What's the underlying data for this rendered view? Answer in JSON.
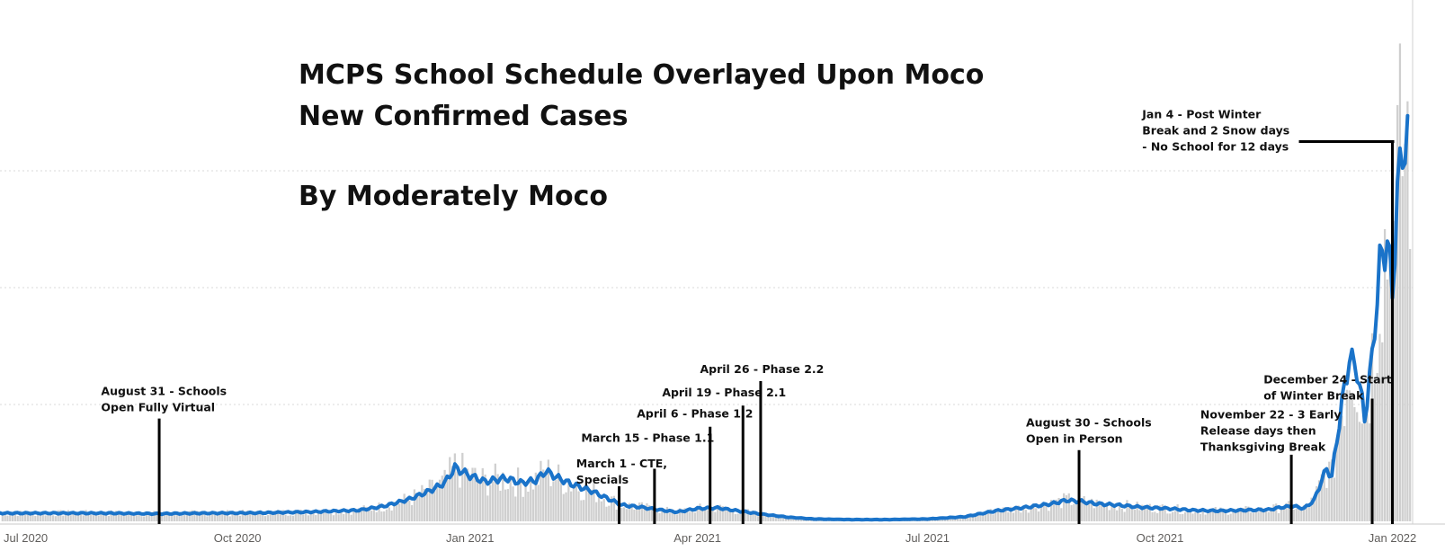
{
  "chart_data": {
    "type": "bar+line",
    "title_lines": [
      "MCPS School Schedule Overlayed Upon Moco",
      "New Confirmed Cases",
      "",
      "By Moderately Moco"
    ],
    "x_ticks": [
      {
        "label": "Jul 2020",
        "day": 0
      },
      {
        "label": "Oct 2020",
        "day": 92
      },
      {
        "label": "Jan 2021",
        "day": 184
      },
      {
        "label": "Apr 2021",
        "day": 274
      },
      {
        "label": "Jul 2021",
        "day": 365
      },
      {
        "label": "Oct 2021",
        "day": 457
      },
      {
        "label": "Jan 2022",
        "day": 549
      }
    ],
    "x_range_days": [
      -2,
      557
    ],
    "ylim": [
      0,
      4000
    ],
    "gridlines": [
      1000,
      2000,
      3000
    ],
    "series_line_color": "#1a73c9",
    "bar_color": "#cfcfcf",
    "avg_keypoints": [
      [
        -2,
        70
      ],
      [
        20,
        70
      ],
      [
        40,
        70
      ],
      [
        60,
        65
      ],
      [
        80,
        70
      ],
      [
        100,
        72
      ],
      [
        120,
        80
      ],
      [
        140,
        95
      ],
      [
        150,
        130
      ],
      [
        160,
        190
      ],
      [
        168,
        260
      ],
      [
        174,
        330
      ],
      [
        178,
        460
      ],
      [
        184,
        390
      ],
      [
        190,
        340
      ],
      [
        198,
        370
      ],
      [
        204,
        330
      ],
      [
        210,
        350
      ],
      [
        214,
        430
      ],
      [
        218,
        380
      ],
      [
        224,
        320
      ],
      [
        232,
        260
      ],
      [
        238,
        200
      ],
      [
        244,
        140
      ],
      [
        252,
        120
      ],
      [
        260,
        95
      ],
      [
        266,
        80
      ],
      [
        274,
        110
      ],
      [
        282,
        115
      ],
      [
        290,
        90
      ],
      [
        300,
        60
      ],
      [
        310,
        35
      ],
      [
        320,
        20
      ],
      [
        335,
        15
      ],
      [
        350,
        15
      ],
      [
        365,
        20
      ],
      [
        380,
        40
      ],
      [
        392,
        90
      ],
      [
        404,
        120
      ],
      [
        414,
        150
      ],
      [
        420,
        180
      ],
      [
        426,
        170
      ],
      [
        432,
        150
      ],
      [
        440,
        140
      ],
      [
        450,
        120
      ],
      [
        460,
        110
      ],
      [
        470,
        95
      ],
      [
        480,
        90
      ],
      [
        490,
        95
      ],
      [
        500,
        100
      ],
      [
        505,
        120
      ],
      [
        510,
        130
      ],
      [
        514,
        110
      ],
      [
        518,
        180
      ],
      [
        521,
        350
      ],
      [
        523,
        450
      ],
      [
        525,
        380
      ],
      [
        527,
        700
      ],
      [
        529,
        1000
      ],
      [
        532,
        1400
      ],
      [
        535,
        1300
      ],
      [
        538,
        880
      ],
      [
        541,
        1400
      ],
      [
        544,
        2200
      ],
      [
        547,
        2400
      ],
      [
        549,
        1950
      ],
      [
        551,
        2800
      ],
      [
        553,
        3200
      ],
      [
        555,
        3250
      ]
    ],
    "annotations": [
      {
        "text": [
          "August 31 - Schools",
          "Open Fully Virtual"
        ],
        "day": 61,
        "line_top_value": 880,
        "text_day": 38,
        "text_value": 1080
      },
      {
        "text": [
          "March 1 - CTE,",
          "Specials"
        ],
        "day": 243,
        "line_top_value": 300,
        "text_day": 226,
        "text_value": 460
      },
      {
        "text": [
          "March 15 - Phase 1.1"
        ],
        "day": 257,
        "line_top_value": 450,
        "text_day": 228,
        "text_value": 680
      },
      {
        "text": [
          "April 6 - Phase 1.2"
        ],
        "day": 279,
        "line_top_value": 810,
        "text_day": 250,
        "text_value": 890
      },
      {
        "text": [
          "April 19 - Phase 2.1"
        ],
        "day": 292,
        "line_top_value": 990,
        "text_day": 260,
        "text_value": 1070
      },
      {
        "text": [
          "April 26 - Phase 2.2"
        ],
        "day": 299,
        "line_top_value": 1200,
        "text_day": 275,
        "text_value": 1270
      },
      {
        "text": [
          "August 30 - Schools",
          "Open in Person"
        ],
        "day": 425,
        "line_top_value": 610,
        "text_day": 404,
        "text_value": 810
      },
      {
        "text": [
          "November 22 - 3 Early",
          "Release days then",
          "Thanksgiving Break"
        ],
        "day": 509,
        "line_top_value": 570,
        "text_day": 473,
        "text_value": 880
      },
      {
        "text": [
          "December 24 - Start",
          "of Winter Break"
        ],
        "day": 541,
        "line_top_value": 1050,
        "text_day": 498,
        "text_value": 1180
      },
      {
        "text": [
          "Jan 4 - Post Winter",
          "Break and 2 Snow days",
          "- No School for 12 days"
        ],
        "day": 549,
        "line_top_value": 3250,
        "text_day": 450,
        "text_value": 3450,
        "horizontal_from_day": 512
      }
    ]
  }
}
